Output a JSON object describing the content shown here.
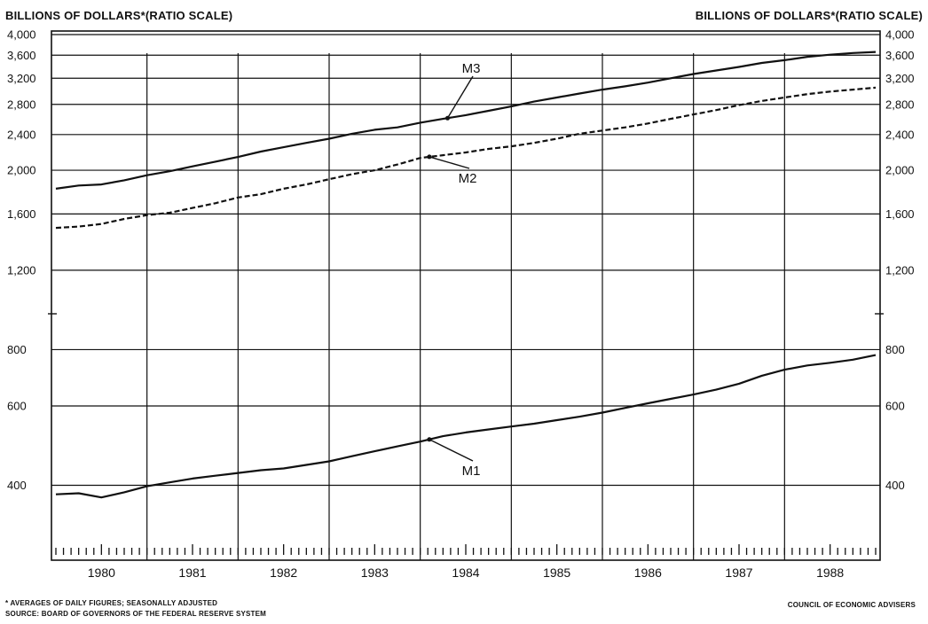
{
  "header": {
    "left": "BILLIONS OF DOLLARS*(RATIO SCALE)",
    "right": "BILLIONS OF DOLLARS*(RATIO SCALE)"
  },
  "footer": {
    "note": "* AVERAGES OF DAILY FIGURES; SEASONALLY ADJUSTED",
    "source": "SOURCE: BOARD OF GOVERNORS OF THE FEDERAL RESERVE SYSTEM",
    "credit": "COUNCIL OF ECONOMIC ADVISERS"
  },
  "chart_data": {
    "type": "line",
    "title": "",
    "xlabel": "",
    "ylabel": "BILLIONS OF DOLLARS*(RATIO SCALE)",
    "y_scale": "log",
    "ylim": [
      330,
      4000
    ],
    "xlim": [
      1980.0,
      1989.0
    ],
    "grid": true,
    "y_ticks": [
      400,
      600,
      800,
      1200,
      1600,
      2000,
      2400,
      2800,
      3200,
      3600,
      4000
    ],
    "y_tick_labels": [
      "400",
      "600",
      "800",
      "1,200",
      "1,600",
      "2,000",
      "2,400",
      "2,800",
      "3,200",
      "3,600",
      "4,000"
    ],
    "x_tick_labels": [
      "1980",
      "1981",
      "1982",
      "1983",
      "1984",
      "1985",
      "1986",
      "1987",
      "1988"
    ],
    "series": [
      {
        "name": "M3",
        "style": "solid",
        "x": [
          1980.0,
          1980.25,
          1980.5,
          1980.75,
          1981.0,
          1981.25,
          1981.5,
          1981.75,
          1982.0,
          1982.25,
          1982.5,
          1982.75,
          1983.0,
          1983.25,
          1983.5,
          1983.75,
          1984.0,
          1984.25,
          1984.5,
          1984.75,
          1985.0,
          1985.25,
          1985.5,
          1985.75,
          1986.0,
          1986.25,
          1986.5,
          1986.75,
          1987.0,
          1987.25,
          1987.5,
          1987.75,
          1988.0,
          1988.25,
          1988.5,
          1988.75,
          1989.0
        ],
        "values": [
          1820,
          1850,
          1860,
          1900,
          1950,
          1990,
          2040,
          2090,
          2140,
          2200,
          2250,
          2300,
          2350,
          2410,
          2460,
          2490,
          2550,
          2600,
          2650,
          2710,
          2770,
          2840,
          2900,
          2960,
          3020,
          3070,
          3130,
          3200,
          3270,
          3330,
          3390,
          3460,
          3510,
          3570,
          3610,
          3640,
          3660
        ]
      },
      {
        "name": "M2",
        "style": "dashed",
        "x": [
          1980.0,
          1980.25,
          1980.5,
          1980.75,
          1981.0,
          1981.25,
          1981.5,
          1981.75,
          1982.0,
          1982.25,
          1982.5,
          1982.75,
          1983.0,
          1983.25,
          1983.5,
          1983.75,
          1984.0,
          1984.25,
          1984.5,
          1984.75,
          1985.0,
          1985.25,
          1985.5,
          1985.75,
          1986.0,
          1986.25,
          1986.5,
          1986.75,
          1987.0,
          1987.25,
          1987.5,
          1987.75,
          1988.0,
          1988.25,
          1988.5,
          1988.75,
          1989.0
        ],
        "values": [
          1490,
          1500,
          1520,
          1560,
          1590,
          1610,
          1650,
          1690,
          1740,
          1770,
          1820,
          1860,
          1910,
          1960,
          2000,
          2060,
          2130,
          2160,
          2190,
          2230,
          2260,
          2300,
          2350,
          2410,
          2450,
          2490,
          2540,
          2600,
          2660,
          2720,
          2790,
          2850,
          2900,
          2950,
          2990,
          3020,
          3050
        ]
      },
      {
        "name": "M1",
        "style": "solid",
        "x": [
          1980.0,
          1980.25,
          1980.5,
          1980.75,
          1981.0,
          1981.25,
          1981.5,
          1981.75,
          1982.0,
          1982.25,
          1982.5,
          1982.75,
          1983.0,
          1983.25,
          1983.5,
          1983.75,
          1984.0,
          1984.25,
          1984.5,
          1984.75,
          1985.0,
          1985.25,
          1985.5,
          1985.75,
          1986.0,
          1986.25,
          1986.5,
          1986.75,
          1987.0,
          1987.25,
          1987.5,
          1987.75,
          1988.0,
          1988.25,
          1988.5,
          1988.75,
          1989.0
        ],
        "values": [
          382,
          384,
          376,
          386,
          398,
          406,
          414,
          420,
          426,
          432,
          436,
          444,
          452,
          464,
          476,
          488,
          500,
          514,
          524,
          532,
          540,
          548,
          558,
          568,
          580,
          594,
          608,
          622,
          636,
          652,
          672,
          700,
          722,
          738,
          748,
          760,
          778
        ]
      }
    ]
  }
}
